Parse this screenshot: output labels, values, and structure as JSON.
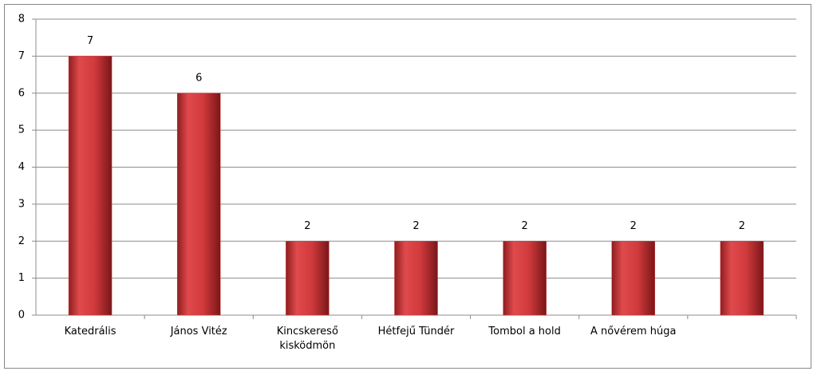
{
  "chart_data": {
    "type": "bar",
    "categories": [
      "Katedrális",
      "János Vitéz",
      "Kincskereső kisködmön",
      "Hétfejű Tündér",
      "Tombol a hold",
      "A nővérem húga",
      null
    ],
    "values": [
      7,
      6,
      2,
      2,
      2,
      2,
      2
    ],
    "color": "#d03a3c",
    "ylim": [
      0,
      8
    ],
    "yticks": [
      0,
      1,
      2,
      3,
      4,
      5,
      6,
      7,
      8
    ],
    "grid": true
  }
}
